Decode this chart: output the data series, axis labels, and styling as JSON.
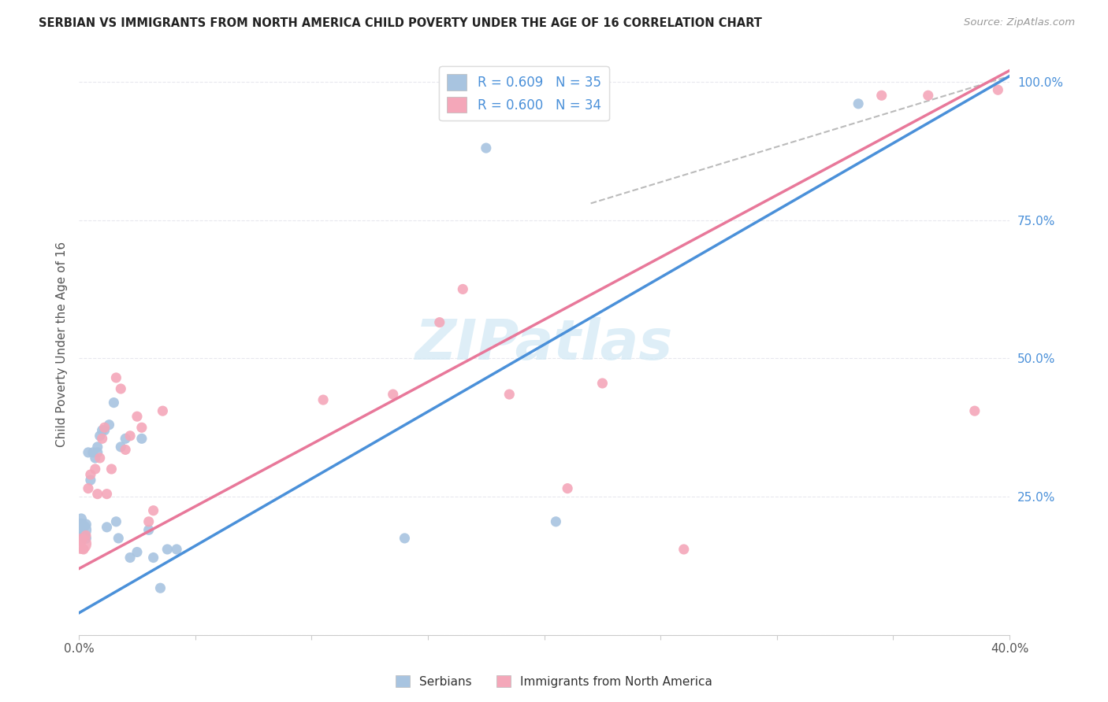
{
  "title": "SERBIAN VS IMMIGRANTS FROM NORTH AMERICA CHILD POVERTY UNDER THE AGE OF 16 CORRELATION CHART",
  "source": "Source: ZipAtlas.com",
  "ylabel": "Child Poverty Under the Age of 16",
  "xlim": [
    0.0,
    0.4
  ],
  "ylim": [
    0.0,
    1.05
  ],
  "x_ticks": [
    0.0,
    0.05,
    0.1,
    0.15,
    0.2,
    0.25,
    0.3,
    0.35,
    0.4
  ],
  "x_tick_labels": [
    "0.0%",
    "",
    "",
    "",
    "",
    "",
    "",
    "",
    "40.0%"
  ],
  "y_tick_labels": [
    "",
    "25.0%",
    "50.0%",
    "75.0%",
    "100.0%"
  ],
  "y_ticks": [
    0.0,
    0.25,
    0.5,
    0.75,
    1.0
  ],
  "blue_color": "#a8c4e0",
  "pink_color": "#f4a7b9",
  "blue_line_color": "#4a90d9",
  "pink_line_color": "#e8789a",
  "dash_line_color": "#bbbbbb",
  "watermark_color": "#d0e8f5",
  "legend_text_color": "#4a90d9",
  "watermark": "ZIPatlas",
  "legend_blue_label": "R = 0.609   N = 35",
  "legend_pink_label": "R = 0.600   N = 34",
  "legend_label_blue": "Serbians",
  "legend_label_pink": "Immigrants from North America",
  "blue_line_x0": 0.0,
  "blue_line_y0": 0.04,
  "blue_line_x1": 0.4,
  "blue_line_y1": 1.01,
  "pink_line_x0": 0.0,
  "pink_line_y0": 0.12,
  "pink_line_x1": 0.4,
  "pink_line_y1": 1.02,
  "dash_line_x0": 0.22,
  "dash_line_y0": 0.78,
  "dash_line_x1": 0.4,
  "dash_line_y1": 1.01,
  "serbian_x": [
    0.001,
    0.001,
    0.001,
    0.002,
    0.002,
    0.003,
    0.003,
    0.004,
    0.005,
    0.006,
    0.007,
    0.008,
    0.008,
    0.009,
    0.01,
    0.011,
    0.012,
    0.013,
    0.015,
    0.016,
    0.017,
    0.018,
    0.02,
    0.022,
    0.025,
    0.027,
    0.03,
    0.032,
    0.035,
    0.038,
    0.042,
    0.14,
    0.175,
    0.205,
    0.335
  ],
  "serbian_y": [
    0.19,
    0.2,
    0.21,
    0.18,
    0.195,
    0.175,
    0.2,
    0.33,
    0.28,
    0.33,
    0.32,
    0.34,
    0.33,
    0.36,
    0.37,
    0.37,
    0.195,
    0.38,
    0.42,
    0.205,
    0.175,
    0.34,
    0.355,
    0.14,
    0.15,
    0.355,
    0.19,
    0.14,
    0.085,
    0.155,
    0.155,
    0.175,
    0.88,
    0.205,
    0.96
  ],
  "serbian_size": [
    350,
    120,
    100,
    120,
    100,
    100,
    100,
    90,
    90,
    90,
    90,
    90,
    90,
    90,
    90,
    90,
    90,
    90,
    90,
    90,
    90,
    90,
    90,
    90,
    90,
    90,
    90,
    90,
    90,
    90,
    90,
    90,
    90,
    90,
    90
  ],
  "immigrant_x": [
    0.001,
    0.001,
    0.002,
    0.003,
    0.004,
    0.005,
    0.007,
    0.008,
    0.009,
    0.01,
    0.011,
    0.012,
    0.014,
    0.016,
    0.018,
    0.02,
    0.022,
    0.025,
    0.027,
    0.03,
    0.032,
    0.036,
    0.105,
    0.135,
    0.155,
    0.165,
    0.185,
    0.21,
    0.225,
    0.26,
    0.345,
    0.365,
    0.385,
    0.395
  ],
  "immigrant_y": [
    0.165,
    0.17,
    0.155,
    0.18,
    0.265,
    0.29,
    0.3,
    0.255,
    0.32,
    0.355,
    0.375,
    0.255,
    0.3,
    0.465,
    0.445,
    0.335,
    0.36,
    0.395,
    0.375,
    0.205,
    0.225,
    0.405,
    0.425,
    0.435,
    0.565,
    0.625,
    0.435,
    0.265,
    0.455,
    0.155,
    0.975,
    0.975,
    0.405,
    0.985
  ],
  "immigrant_size": [
    350,
    100,
    90,
    90,
    90,
    90,
    90,
    90,
    90,
    90,
    90,
    90,
    90,
    90,
    90,
    90,
    90,
    90,
    90,
    90,
    90,
    90,
    90,
    90,
    90,
    90,
    90,
    90,
    90,
    90,
    90,
    90,
    90,
    90
  ]
}
